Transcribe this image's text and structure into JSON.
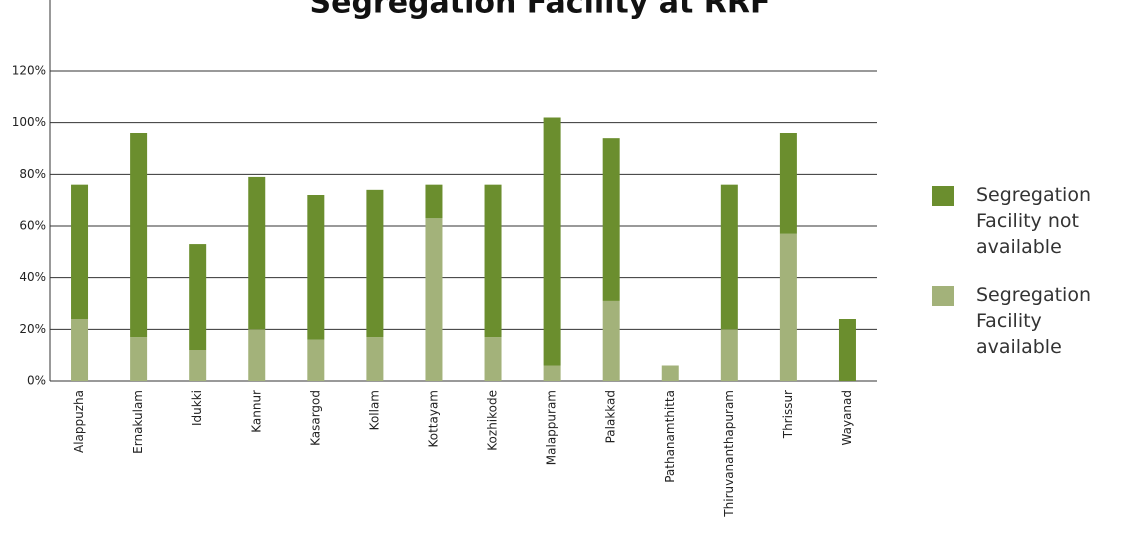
{
  "chart_data": {
    "type": "stacked-bar",
    "title": "Segregation Facility at RRF",
    "categories": [
      "Alappuzha",
      "Ernakulam",
      "Idukki",
      "Kannur",
      "Kasargod",
      "Kollam",
      "Kottayam",
      "Kozhikode",
      "Malappuram",
      "Palakkad",
      "Pathanamthitta",
      "Thiruvananthapuram",
      "Thrissur",
      "Wayanad"
    ],
    "series": [
      {
        "name": "Segregation Facility available",
        "color": "#a3b27a",
        "values": [
          24,
          17,
          12,
          20,
          16,
          17,
          63,
          17,
          6,
          31,
          6,
          20,
          57,
          0
        ]
      },
      {
        "name": "Segregation Facility not available",
        "color": "#6b8e2e",
        "values": [
          52,
          79,
          41,
          59,
          56,
          57,
          13,
          59,
          96,
          63,
          0,
          56,
          39,
          24
        ]
      }
    ],
    "ylim": [
      0,
      120
    ],
    "yticks": [
      {
        "value": 0,
        "label": "0%"
      },
      {
        "value": 20,
        "label": "20%"
      },
      {
        "value": 40,
        "label": "40%"
      },
      {
        "value": 60,
        "label": "60%"
      },
      {
        "value": 80,
        "label": "80%"
      },
      {
        "value": 100,
        "label": "100%"
      },
      {
        "value": 120,
        "label": "120%"
      }
    ],
    "grid": true
  }
}
